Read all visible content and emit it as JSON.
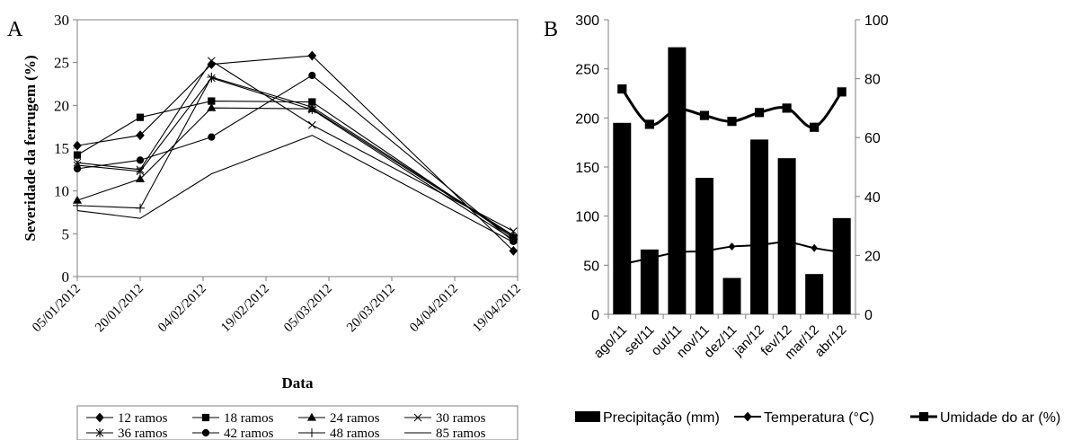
{
  "panels": {
    "a": {
      "letter": "A"
    },
    "b": {
      "letter": "B"
    }
  },
  "chart_data": [
    {
      "type": "line",
      "ylabel": "Severidade da ferrugem (%)",
      "xlabel": "Data",
      "ylim": [
        0,
        30
      ],
      "yticks": [
        0,
        5,
        10,
        15,
        20,
        25,
        30
      ],
      "xlim": [
        "2012-01-05",
        "2012-04-19"
      ],
      "xticks": [
        "05/01/2012",
        "20/01/2012",
        "04/02/2012",
        "19/02/2012",
        "05/03/2012",
        "20/03/2012",
        "04/04/2012",
        "19/04/2012"
      ],
      "x": [
        "05/01/2012",
        "20/01/2012",
        "06/02/2012",
        "01/03/2012",
        "18/04/2012"
      ],
      "grid": false,
      "legend_position": "bottom",
      "series": [
        {
          "name": "12 ramos",
          "marker": "diamond",
          "values": [
            15.3,
            16.5,
            24.8,
            25.8,
            3.0
          ]
        },
        {
          "name": "18 ramos",
          "marker": "square",
          "values": [
            14.2,
            18.6,
            20.5,
            20.4,
            4.5
          ]
        },
        {
          "name": "24 ramos",
          "marker": "triangle",
          "values": [
            8.9,
            11.4,
            19.7,
            19.6,
            4.7
          ]
        },
        {
          "name": "30 ramos",
          "marker": "x",
          "values": [
            13.3,
            12.5,
            25.2,
            17.7,
            5.3
          ]
        },
        {
          "name": "36 ramos",
          "marker": "asterisk",
          "values": [
            13.0,
            12.3,
            23.2,
            19.5,
            4.3
          ]
        },
        {
          "name": "42 ramos",
          "marker": "circle",
          "values": [
            12.6,
            13.6,
            16.3,
            23.5,
            4.1
          ]
        },
        {
          "name": "48 ramos",
          "marker": "plus",
          "values": [
            8.3,
            8.0,
            23.3,
            19.8,
            4.8
          ]
        },
        {
          "name": "85 ramos",
          "marker": "none",
          "values": [
            7.7,
            6.8,
            12.0,
            16.5,
            4.0
          ]
        }
      ]
    },
    {
      "type": "bar",
      "categories": [
        "ago/11",
        "set/11",
        "out/11",
        "nov/11",
        "dez/11",
        "jan/12",
        "fev/12",
        "mar/12",
        "abr/12"
      ],
      "ylim": [
        0,
        300
      ],
      "yticks": [
        0,
        50,
        100,
        150,
        200,
        250,
        300
      ],
      "y2lim": [
        0,
        100
      ],
      "y2ticks": [
        0,
        20,
        40,
        60,
        80,
        100
      ],
      "grid": false,
      "legend_position": "bottom",
      "series": [
        {
          "name": "Precipitação (mm)",
          "type": "bar",
          "axis": "left",
          "color": "#000000",
          "values": [
            195,
            66,
            272,
            139,
            37,
            178,
            159,
            41,
            98
          ]
        },
        {
          "name": "Temperatura (°C)",
          "type": "line",
          "axis": "right",
          "marker": "diamond",
          "values": [
            17,
            19,
            21,
            21.5,
            23,
            23.5,
            24.5,
            22.5,
            21
          ]
        },
        {
          "name": "Umidade do ar (%)",
          "type": "line",
          "axis": "right",
          "marker": "square",
          "values": [
            76.5,
            64.5,
            69.5,
            67.5,
            65.5,
            68.5,
            70,
            63.5,
            75.5
          ]
        }
      ]
    }
  ]
}
